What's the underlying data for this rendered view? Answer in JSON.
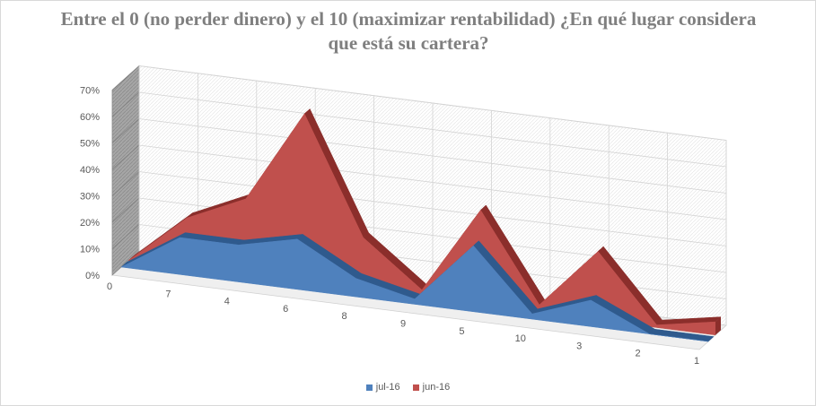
{
  "chart_data": {
    "type": "area",
    "title": "Entre el 0 (no perder dinero) y el 10 (maximizar rentabilidad) ¿En qué lugar considera que está su cartera?",
    "categories": [
      "0",
      "7",
      "4",
      "6",
      "8",
      "9",
      "5",
      "10",
      "3",
      "2",
      "1"
    ],
    "y_tick_labels": [
      "0%",
      "10%",
      "20%",
      "30%",
      "40%",
      "50%",
      "60%",
      "70%"
    ],
    "ylim": [
      0,
      70
    ],
    "grid": true,
    "legend_position": "bottom",
    "series": [
      {
        "name": "jul-16",
        "color": "#4f81bd",
        "values": [
          0,
          14,
          14,
          19,
          7,
          2,
          25,
          2,
          10,
          0,
          0
        ]
      },
      {
        "name": "jun-16",
        "color": "#c0504d",
        "values": [
          0,
          19,
          29,
          64,
          20,
          3,
          36,
          3,
          26,
          1,
          5
        ]
      }
    ]
  }
}
